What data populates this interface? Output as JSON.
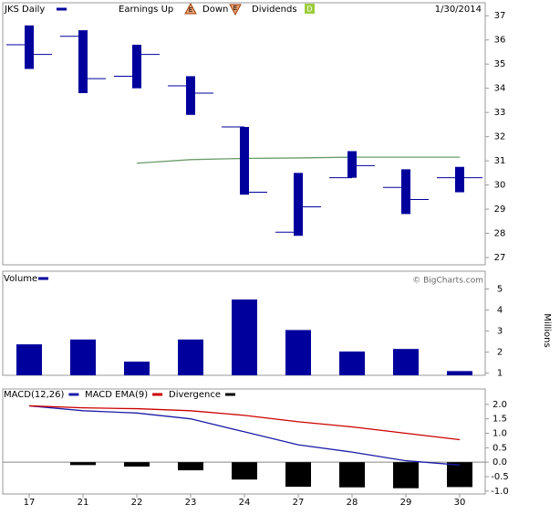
{
  "chart_data": [
    {
      "type": "ohlc",
      "title": "JKS Daily",
      "color": "#00009c",
      "legend": {
        "earnings_up": "Earnings Up",
        "down": "Down",
        "earnings_icon": "E",
        "dividends": "Dividends",
        "dividends_icon": "D"
      },
      "date": "1/30/2014",
      "open": [
        35.8,
        36.15,
        34.5,
        34.1,
        32.4,
        28.05,
        30.3,
        29.9,
        30.3
      ],
      "high": [
        36.6,
        36.4,
        35.8,
        34.5,
        32.4,
        30.5,
        31.4,
        30.65,
        30.75
      ],
      "low": [
        34.8,
        33.8,
        34.0,
        32.9,
        29.6,
        27.9,
        30.3,
        28.8,
        29.7
      ],
      "close": [
        35.4,
        34.4,
        35.4,
        33.8,
        29.7,
        29.1,
        30.8,
        29.4,
        30.3
      ],
      "moving_average": {
        "color": "#6a9c6a",
        "values": [
          null,
          null,
          30.9,
          31.05,
          31.1,
          31.12,
          31.15,
          31.15,
          31.15
        ]
      },
      "ylim": [
        26.7,
        37.5
      ],
      "yticks": [
        27,
        28,
        29,
        30,
        31,
        32,
        33,
        34,
        35,
        36,
        37
      ]
    },
    {
      "type": "bar",
      "title": "Volume",
      "color": "#00009c",
      "credit": "© BigCharts.com",
      "ylabel": "Millions",
      "values": [
        2.37,
        2.6,
        1.55,
        2.6,
        4.5,
        3.05,
        2.03,
        2.15,
        1.1
      ],
      "ylim": [
        0.9,
        5.8
      ],
      "yticks": [
        1,
        2,
        3,
        4,
        5
      ]
    },
    {
      "type": "line",
      "categories": [
        "17",
        "21",
        "22",
        "23",
        "24",
        "27",
        "28",
        "29",
        "30"
      ],
      "series": [
        {
          "name": "MACD(12,26)",
          "color": "#1c1ca8",
          "style": "line",
          "values": [
            1.95,
            1.78,
            1.7,
            1.5,
            1.05,
            0.6,
            0.35,
            0.05,
            -0.1
          ]
        },
        {
          "name": "MACD EMA(9)",
          "color": "#cc0000",
          "style": "line",
          "values": [
            1.95,
            1.88,
            1.85,
            1.78,
            1.62,
            1.4,
            1.22,
            1.0,
            0.78
          ]
        },
        {
          "name": "Divergence",
          "color": "#000000",
          "style": "bar",
          "values": [
            0,
            -0.1,
            -0.15,
            -0.28,
            -0.6,
            -0.85,
            -0.87,
            -0.9,
            -0.86
          ]
        }
      ],
      "ylim": [
        -1.1,
        2.5
      ],
      "yticks": [
        {
          "value": 2,
          "label": "2.0"
        },
        1.5,
        {
          "value": 1,
          "label": "1.0"
        },
        0.5,
        {
          "value": 0,
          "label": "0.0"
        },
        -0.5,
        {
          "value": -1,
          "label": "-1.0"
        }
      ]
    }
  ]
}
